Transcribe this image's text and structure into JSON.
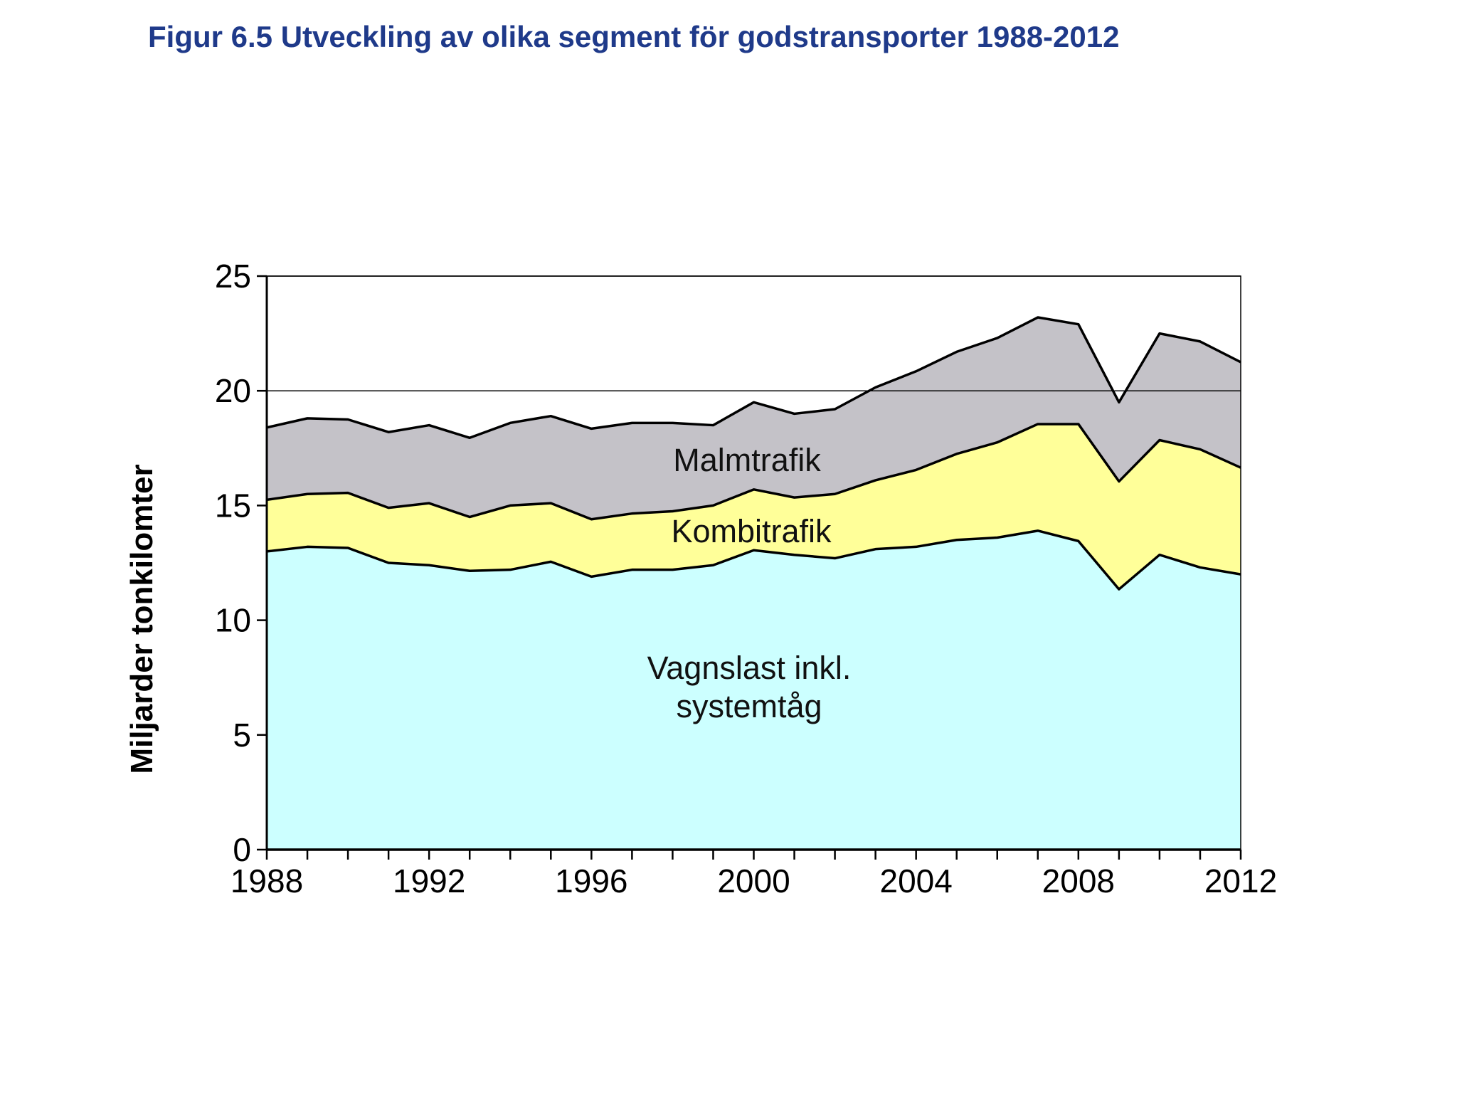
{
  "page": {
    "title": "Figur 6.5 Utveckling av olika segment för godstransporter 1988-2012"
  },
  "chart_data": {
    "type": "area",
    "stacked": true,
    "ylabel": "Miljarder tonkilomter",
    "ylim": [
      0,
      25
    ],
    "yticks": [
      0,
      5,
      10,
      15,
      20,
      25
    ],
    "xlim": [
      1988,
      2012
    ],
    "xticks": [
      1988,
      1992,
      1996,
      2000,
      2004,
      2008,
      2012
    ],
    "grid": {
      "horizontal": [
        20,
        25
      ]
    },
    "x": [
      1988,
      1989,
      1990,
      1991,
      1992,
      1993,
      1994,
      1995,
      1996,
      1997,
      1998,
      1999,
      2000,
      2001,
      2002,
      2003,
      2004,
      2005,
      2006,
      2007,
      2008,
      2009,
      2010,
      2011,
      2012
    ],
    "series": [
      {
        "name": "Vagnslast inkl. systemtåg",
        "label_lines": [
          "Vagnslast inkl.",
          "systemtåg"
        ],
        "color": "#ccffff",
        "values": [
          13.0,
          13.2,
          13.15,
          12.5,
          12.4,
          12.15,
          12.2,
          12.55,
          11.9,
          12.2,
          12.2,
          12.4,
          13.05,
          12.85,
          12.7,
          13.1,
          13.2,
          13.5,
          13.6,
          13.9,
          13.45,
          11.35,
          12.85,
          12.3,
          12.0
        ]
      },
      {
        "name": "Kombitrafik",
        "color": "#ffff99",
        "values": [
          2.25,
          2.3,
          2.4,
          2.4,
          2.7,
          2.35,
          2.8,
          2.55,
          2.5,
          2.45,
          2.55,
          2.6,
          2.65,
          2.5,
          2.8,
          3.0,
          3.35,
          3.75,
          4.15,
          4.65,
          5.1,
          4.7,
          5.0,
          5.15,
          4.65
        ]
      },
      {
        "name": "Malmtrafik",
        "color": "#c4c2c8",
        "values": [
          3.15,
          3.3,
          3.2,
          3.3,
          3.4,
          3.45,
          3.6,
          3.8,
          3.95,
          3.95,
          3.85,
          3.5,
          3.8,
          3.65,
          3.7,
          4.05,
          4.3,
          4.45,
          4.55,
          4.65,
          4.35,
          3.45,
          4.65,
          4.7,
          4.6
        ]
      }
    ]
  }
}
